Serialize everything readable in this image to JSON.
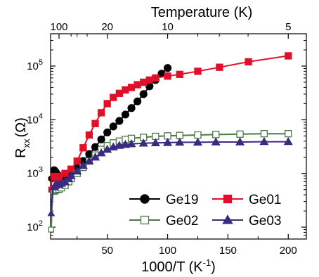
{
  "chart_data": {
    "type": "line",
    "xlabel": "1000/T (K",
    "xlabel_sup": "-1",
    "xlabel_close": ")",
    "ylabel_main": "R",
    "ylabel_sub": "xx",
    "ylabel_unit": "(Ω)",
    "top_xlabel": "Temperature (K)",
    "x_ticks": [
      "50",
      "100",
      "150",
      "200"
    ],
    "y_tick_base": "10",
    "y_tick_exponents": [
      "2",
      "3",
      "4",
      "5"
    ],
    "top_ticks": [
      {
        "label": "100",
        "x": 10
      },
      {
        "label": "20",
        "x": 50
      },
      {
        "label": "10",
        "x": 100
      },
      {
        "label": "5",
        "x": 200
      }
    ],
    "xlim": [
      3,
      215
    ],
    "ylim": [
      60,
      400000
    ],
    "y_scale": "log",
    "legend_placement": "bottom-right",
    "series": [
      {
        "name": "Ge19",
        "color": "#000000",
        "marker": "circle",
        "filled": true,
        "points": [
          [
            3.5,
            800
          ],
          [
            4,
            1100
          ],
          [
            4.5,
            1250
          ],
          [
            5,
            1200
          ],
          [
            6,
            1150
          ],
          [
            7,
            1080
          ],
          [
            8,
            1000
          ],
          [
            10,
            900
          ],
          [
            12,
            870
          ],
          [
            15,
            860
          ],
          [
            18,
            900
          ],
          [
            20,
            1000
          ],
          [
            25,
            1300
          ],
          [
            30,
            1700
          ],
          [
            35,
            2300
          ],
          [
            40,
            3100
          ],
          [
            45,
            4300
          ],
          [
            50,
            5800
          ],
          [
            55,
            7500
          ],
          [
            60,
            9500
          ],
          [
            65,
            12500
          ],
          [
            70,
            16500
          ],
          [
            75,
            22000
          ],
          [
            80,
            30000
          ],
          [
            85,
            42000
          ],
          [
            90,
            55000
          ],
          [
            95,
            72000
          ],
          [
            100,
            92000
          ]
        ]
      },
      {
        "name": "Ge01",
        "color": "#e0102a",
        "marker": "square",
        "filled": true,
        "points": [
          [
            3.5,
            500
          ],
          [
            4,
            800
          ],
          [
            5,
            950
          ],
          [
            6,
            880
          ],
          [
            8,
            800
          ],
          [
            10,
            880
          ],
          [
            15,
            1000
          ],
          [
            20,
            1200
          ],
          [
            25,
            1700
          ],
          [
            30,
            3000
          ],
          [
            35,
            5200
          ],
          [
            40,
            8500
          ],
          [
            45,
            13500
          ],
          [
            50,
            20000
          ],
          [
            55,
            26000
          ],
          [
            60,
            31000
          ],
          [
            65,
            36000
          ],
          [
            70,
            40000
          ],
          [
            75,
            45000
          ],
          [
            80,
            50000
          ],
          [
            85,
            55000
          ],
          [
            90,
            60000
          ],
          [
            100,
            65000
          ],
          [
            110,
            70000
          ],
          [
            125,
            80000
          ],
          [
            143,
            95000
          ],
          [
            167,
            120000
          ],
          [
            200,
            155000
          ]
        ]
      },
      {
        "name": "Ge02",
        "color": "#4a7a4a",
        "marker": "square",
        "filled": false,
        "points": [
          [
            3.5,
            90
          ],
          [
            4,
            200
          ],
          [
            4.5,
            320
          ],
          [
            5,
            440
          ],
          [
            6,
            470
          ],
          [
            7,
            490
          ],
          [
            8,
            500
          ],
          [
            10,
            510
          ],
          [
            12,
            540
          ],
          [
            15,
            600
          ],
          [
            18,
            700
          ],
          [
            20,
            800
          ],
          [
            25,
            1000
          ],
          [
            30,
            1300
          ],
          [
            35,
            1700
          ],
          [
            40,
            2200
          ],
          [
            45,
            2800
          ],
          [
            50,
            3300
          ],
          [
            55,
            3700
          ],
          [
            60,
            4000
          ],
          [
            65,
            4300
          ],
          [
            70,
            4500
          ],
          [
            80,
            4700
          ],
          [
            90,
            4900
          ],
          [
            100,
            5000
          ],
          [
            110,
            5100
          ],
          [
            125,
            5200
          ],
          [
            140,
            5300
          ],
          [
            160,
            5400
          ],
          [
            180,
            5500
          ],
          [
            200,
            5500
          ]
        ]
      },
      {
        "name": "Ge03",
        "color": "#3a2a80",
        "marker": "triangle",
        "filled": true,
        "points": [
          [
            3.5,
            180
          ],
          [
            4,
            330
          ],
          [
            5,
            500
          ],
          [
            6,
            560
          ],
          [
            7,
            600
          ],
          [
            8,
            620
          ],
          [
            10,
            620
          ],
          [
            12,
            650
          ],
          [
            15,
            700
          ],
          [
            18,
            800
          ],
          [
            20,
            900
          ],
          [
            25,
            1100
          ],
          [
            30,
            1400
          ],
          [
            35,
            1700
          ],
          [
            40,
            2000
          ],
          [
            45,
            2400
          ],
          [
            50,
            2800
          ],
          [
            55,
            3100
          ],
          [
            60,
            3300
          ],
          [
            65,
            3450
          ],
          [
            70,
            3550
          ],
          [
            80,
            3650
          ],
          [
            90,
            3700
          ],
          [
            100,
            3750
          ],
          [
            110,
            3800
          ],
          [
            125,
            3800
          ],
          [
            140,
            3850
          ],
          [
            160,
            3850
          ],
          [
            180,
            3900
          ],
          [
            200,
            3900
          ]
        ]
      }
    ]
  }
}
